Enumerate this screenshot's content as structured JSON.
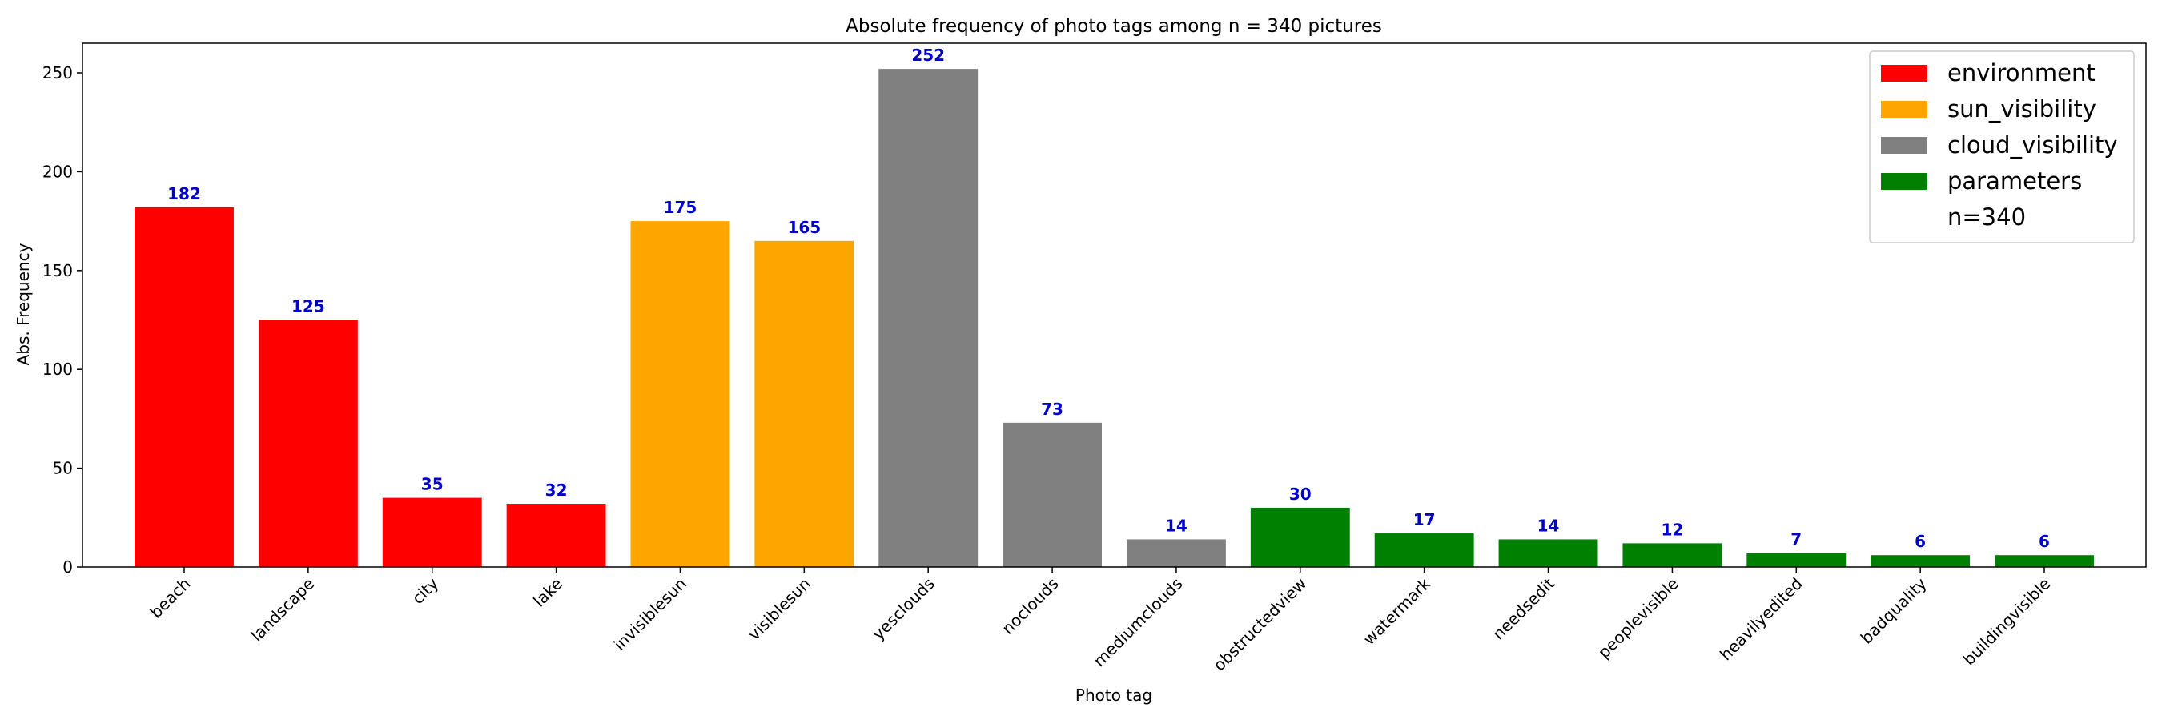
{
  "chart_data": {
    "type": "bar",
    "title": "Absolute frequency of photo tags among n = 340 pictures",
    "xlabel": "Photo tag",
    "ylabel": "Abs. Frequency",
    "ylim": [
      0,
      265
    ],
    "yticks": [
      0,
      50,
      100,
      150,
      200,
      250
    ],
    "grid": false,
    "legend_position": "top-right",
    "categories": [
      "beach",
      "landscape",
      "city",
      "lake",
      "invisiblesun",
      "visiblesun",
      "yesclouds",
      "noclouds",
      "mediumclouds",
      "obstructedview",
      "watermark",
      "needsedit",
      "peoplevisible",
      "heavilyedited",
      "badquality",
      "buildingvisible"
    ],
    "values": [
      182,
      125,
      35,
      32,
      175,
      165,
      252,
      73,
      14,
      30,
      17,
      14,
      12,
      7,
      6,
      6
    ],
    "groups": [
      "environment",
      "environment",
      "environment",
      "environment",
      "sun_visibility",
      "sun_visibility",
      "cloud_visibility",
      "cloud_visibility",
      "cloud_visibility",
      "parameters",
      "parameters",
      "parameters",
      "parameters",
      "parameters",
      "parameters",
      "parameters"
    ],
    "legend": [
      {
        "name": "environment",
        "color": "#ff0000"
      },
      {
        "name": "sun_visibility",
        "color": "#ffa500"
      },
      {
        "name": "cloud_visibility",
        "color": "#808080"
      },
      {
        "name": "parameters",
        "color": "#008000"
      },
      {
        "name": "n=340",
        "color": null
      }
    ],
    "value_label_color": "#0000cd"
  }
}
